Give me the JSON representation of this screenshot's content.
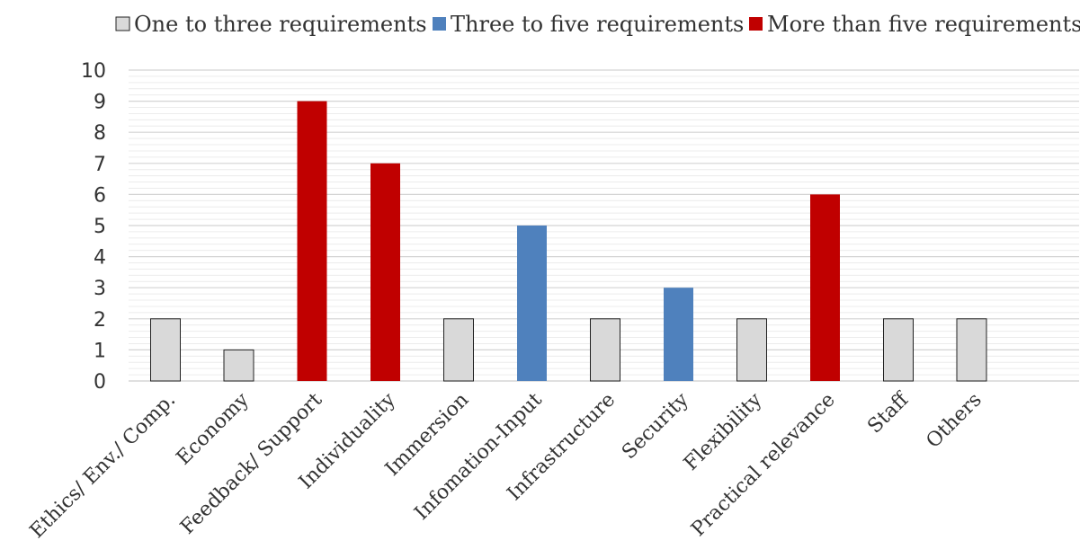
{
  "chart_data": {
    "type": "bar",
    "title": "",
    "xlabel": "",
    "ylabel": "",
    "ylim": [
      0,
      10
    ],
    "yticks": [
      0,
      1,
      2,
      3,
      4,
      5,
      6,
      7,
      8,
      9,
      10
    ],
    "grid": true,
    "legend_position": "top",
    "categories": [
      "Ethics/ Env./ Comp.",
      "Economy",
      "Feedback/ Support",
      "Individuality",
      "Immersion",
      "Infomation-Input",
      "Infrastructure",
      "Security",
      "Flexibility",
      "Practical relevance",
      "Staff",
      "Others"
    ],
    "values": [
      2,
      1,
      9,
      7,
      2,
      5,
      2,
      3,
      2,
      6,
      2,
      2
    ],
    "groups": [
      0,
      0,
      2,
      2,
      0,
      1,
      0,
      1,
      0,
      2,
      0,
      0
    ],
    "legend": [
      {
        "label": "One to three requirements",
        "color": "#d9d9d9",
        "stroke": "#222222"
      },
      {
        "label": "Three to five requirements",
        "color": "#4f81bd",
        "stroke": "none"
      },
      {
        "label": "More than five requirements",
        "color": "#c00000",
        "stroke": "none"
      }
    ]
  }
}
